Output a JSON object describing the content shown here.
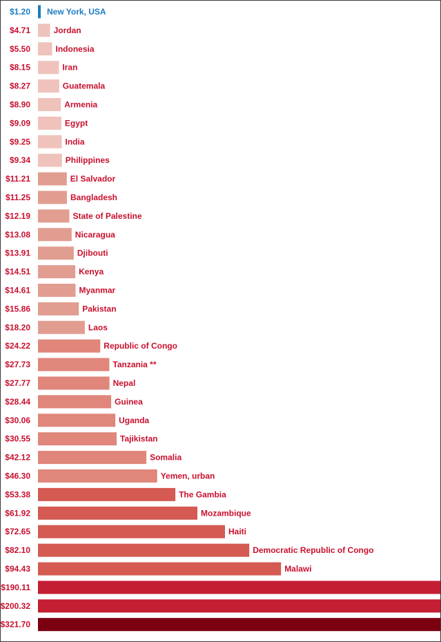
{
  "chart_data": {
    "type": "bar",
    "orientation": "horizontal",
    "title": "",
    "xlabel": "",
    "ylabel": "",
    "grid": false,
    "legend": "none",
    "colors": {
      "highlight": "#1a7dc2",
      "label_red": "#c8102e",
      "tier_lightest": "#efc3bc",
      "tier_light": "#e29d91",
      "tier_mid": "#e0867b",
      "tier_dark": "#d45a52",
      "tier_deep": "#c41e33",
      "tier_darkest": "#7a0010"
    },
    "categories": [
      "New York, USA",
      "Jordan",
      "Indonesia",
      "Iran",
      "Guatemala",
      "Armenia",
      "Egypt",
      "India",
      "Philippines",
      "El Salvador",
      "Bangladesh",
      "State of Palestine",
      "Nicaragua",
      "Djibouti",
      "Kenya",
      "Myanmar",
      "Pakistan",
      "Laos",
      "Republic of Congo",
      "Tanzania **",
      "Nepal",
      "Guinea",
      "Uganda",
      "Tajikistan",
      "Somalia",
      "Yemen, urban",
      "The Gambia",
      "Mozambique",
      "Haiti",
      "Democratic Republic of Congo",
      "Malawi",
      "",
      "",
      ""
    ],
    "value_labels": [
      "$1.20",
      "$4.71",
      "$5.50",
      "$8.15",
      "$8.27",
      "$8.90",
      "$9.09",
      "$9.25",
      "$9.34",
      "$11.21",
      "$11.25",
      "$12.19",
      "$13.08",
      "$13.91",
      "$14.51",
      "$14.61",
      "$15.86",
      "$18.20",
      "$24.22",
      "$27.73",
      "$27.77",
      "$28.44",
      "$30.06",
      "$30.55",
      "$42.12",
      "$46.30",
      "$53.38",
      "$61.92",
      "$72.65",
      "$82.10",
      "$94.43",
      "$190.11",
      "$200.32",
      "$321.70"
    ],
    "values": [
      1.2,
      4.71,
      5.5,
      8.15,
      8.27,
      8.9,
      9.09,
      9.25,
      9.34,
      11.21,
      11.25,
      12.19,
      13.08,
      13.91,
      14.51,
      14.61,
      15.86,
      18.2,
      24.22,
      27.73,
      27.77,
      28.44,
      30.06,
      30.55,
      42.12,
      46.3,
      53.38,
      61.92,
      72.65,
      82.1,
      94.43,
      190.11,
      200.32,
      321.7
    ],
    "tiers": [
      "highlight",
      "tier_lightest",
      "tier_lightest",
      "tier_lightest",
      "tier_lightest",
      "tier_lightest",
      "tier_lightest",
      "tier_lightest",
      "tier_lightest",
      "tier_light",
      "tier_light",
      "tier_light",
      "tier_light",
      "tier_light",
      "tier_light",
      "tier_light",
      "tier_light",
      "tier_light",
      "tier_mid",
      "tier_mid",
      "tier_mid",
      "tier_mid",
      "tier_mid",
      "tier_mid",
      "tier_mid",
      "tier_mid",
      "tier_dark",
      "tier_dark",
      "tier_dark",
      "tier_dark",
      "tier_dark",
      "tier_deep",
      "tier_deep",
      "tier_darkest"
    ]
  }
}
